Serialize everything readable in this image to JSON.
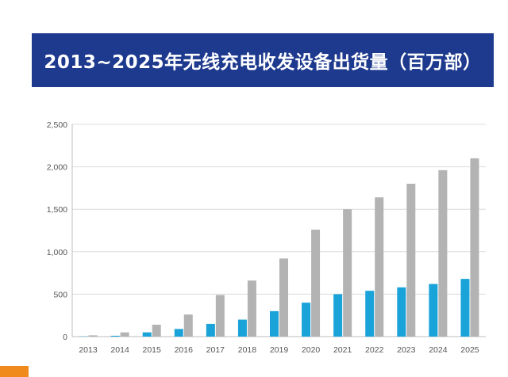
{
  "header": {
    "title": "2013~2025年无线充电收发设备出货量（百万部）"
  },
  "colors": {
    "title_background": "#1e3a8e",
    "series_1": "#1aa3d9",
    "series_2": "#b3b3b3",
    "corner_mark": "#f08a1c"
  },
  "chart_data": {
    "type": "bar",
    "title": "2013~2025年无线充电收发设备出货量（百万部）",
    "xlabel": "",
    "ylabel": "",
    "ylim": [
      0,
      2500
    ],
    "yticks": [
      0,
      500,
      1000,
      1500,
      2000,
      2500
    ],
    "ytick_labels": [
      "0",
      "500",
      "1,000",
      "1,500",
      "2,000",
      "2,500"
    ],
    "grid": true,
    "legend": "none",
    "categories": [
      "2013",
      "2014",
      "2015",
      "2016",
      "2017",
      "2018",
      "2019",
      "2020",
      "2021",
      "2022",
      "2023",
      "2024",
      "2025"
    ],
    "series": [
      {
        "color": "#1aa3d9",
        "values": [
          3,
          10,
          50,
          90,
          150,
          200,
          300,
          400,
          500,
          540,
          580,
          620,
          680
        ]
      },
      {
        "color": "#b3b3b3",
        "values": [
          15,
          50,
          140,
          260,
          490,
          660,
          920,
          1260,
          1500,
          1640,
          1800,
          1960,
          2100
        ]
      }
    ]
  }
}
